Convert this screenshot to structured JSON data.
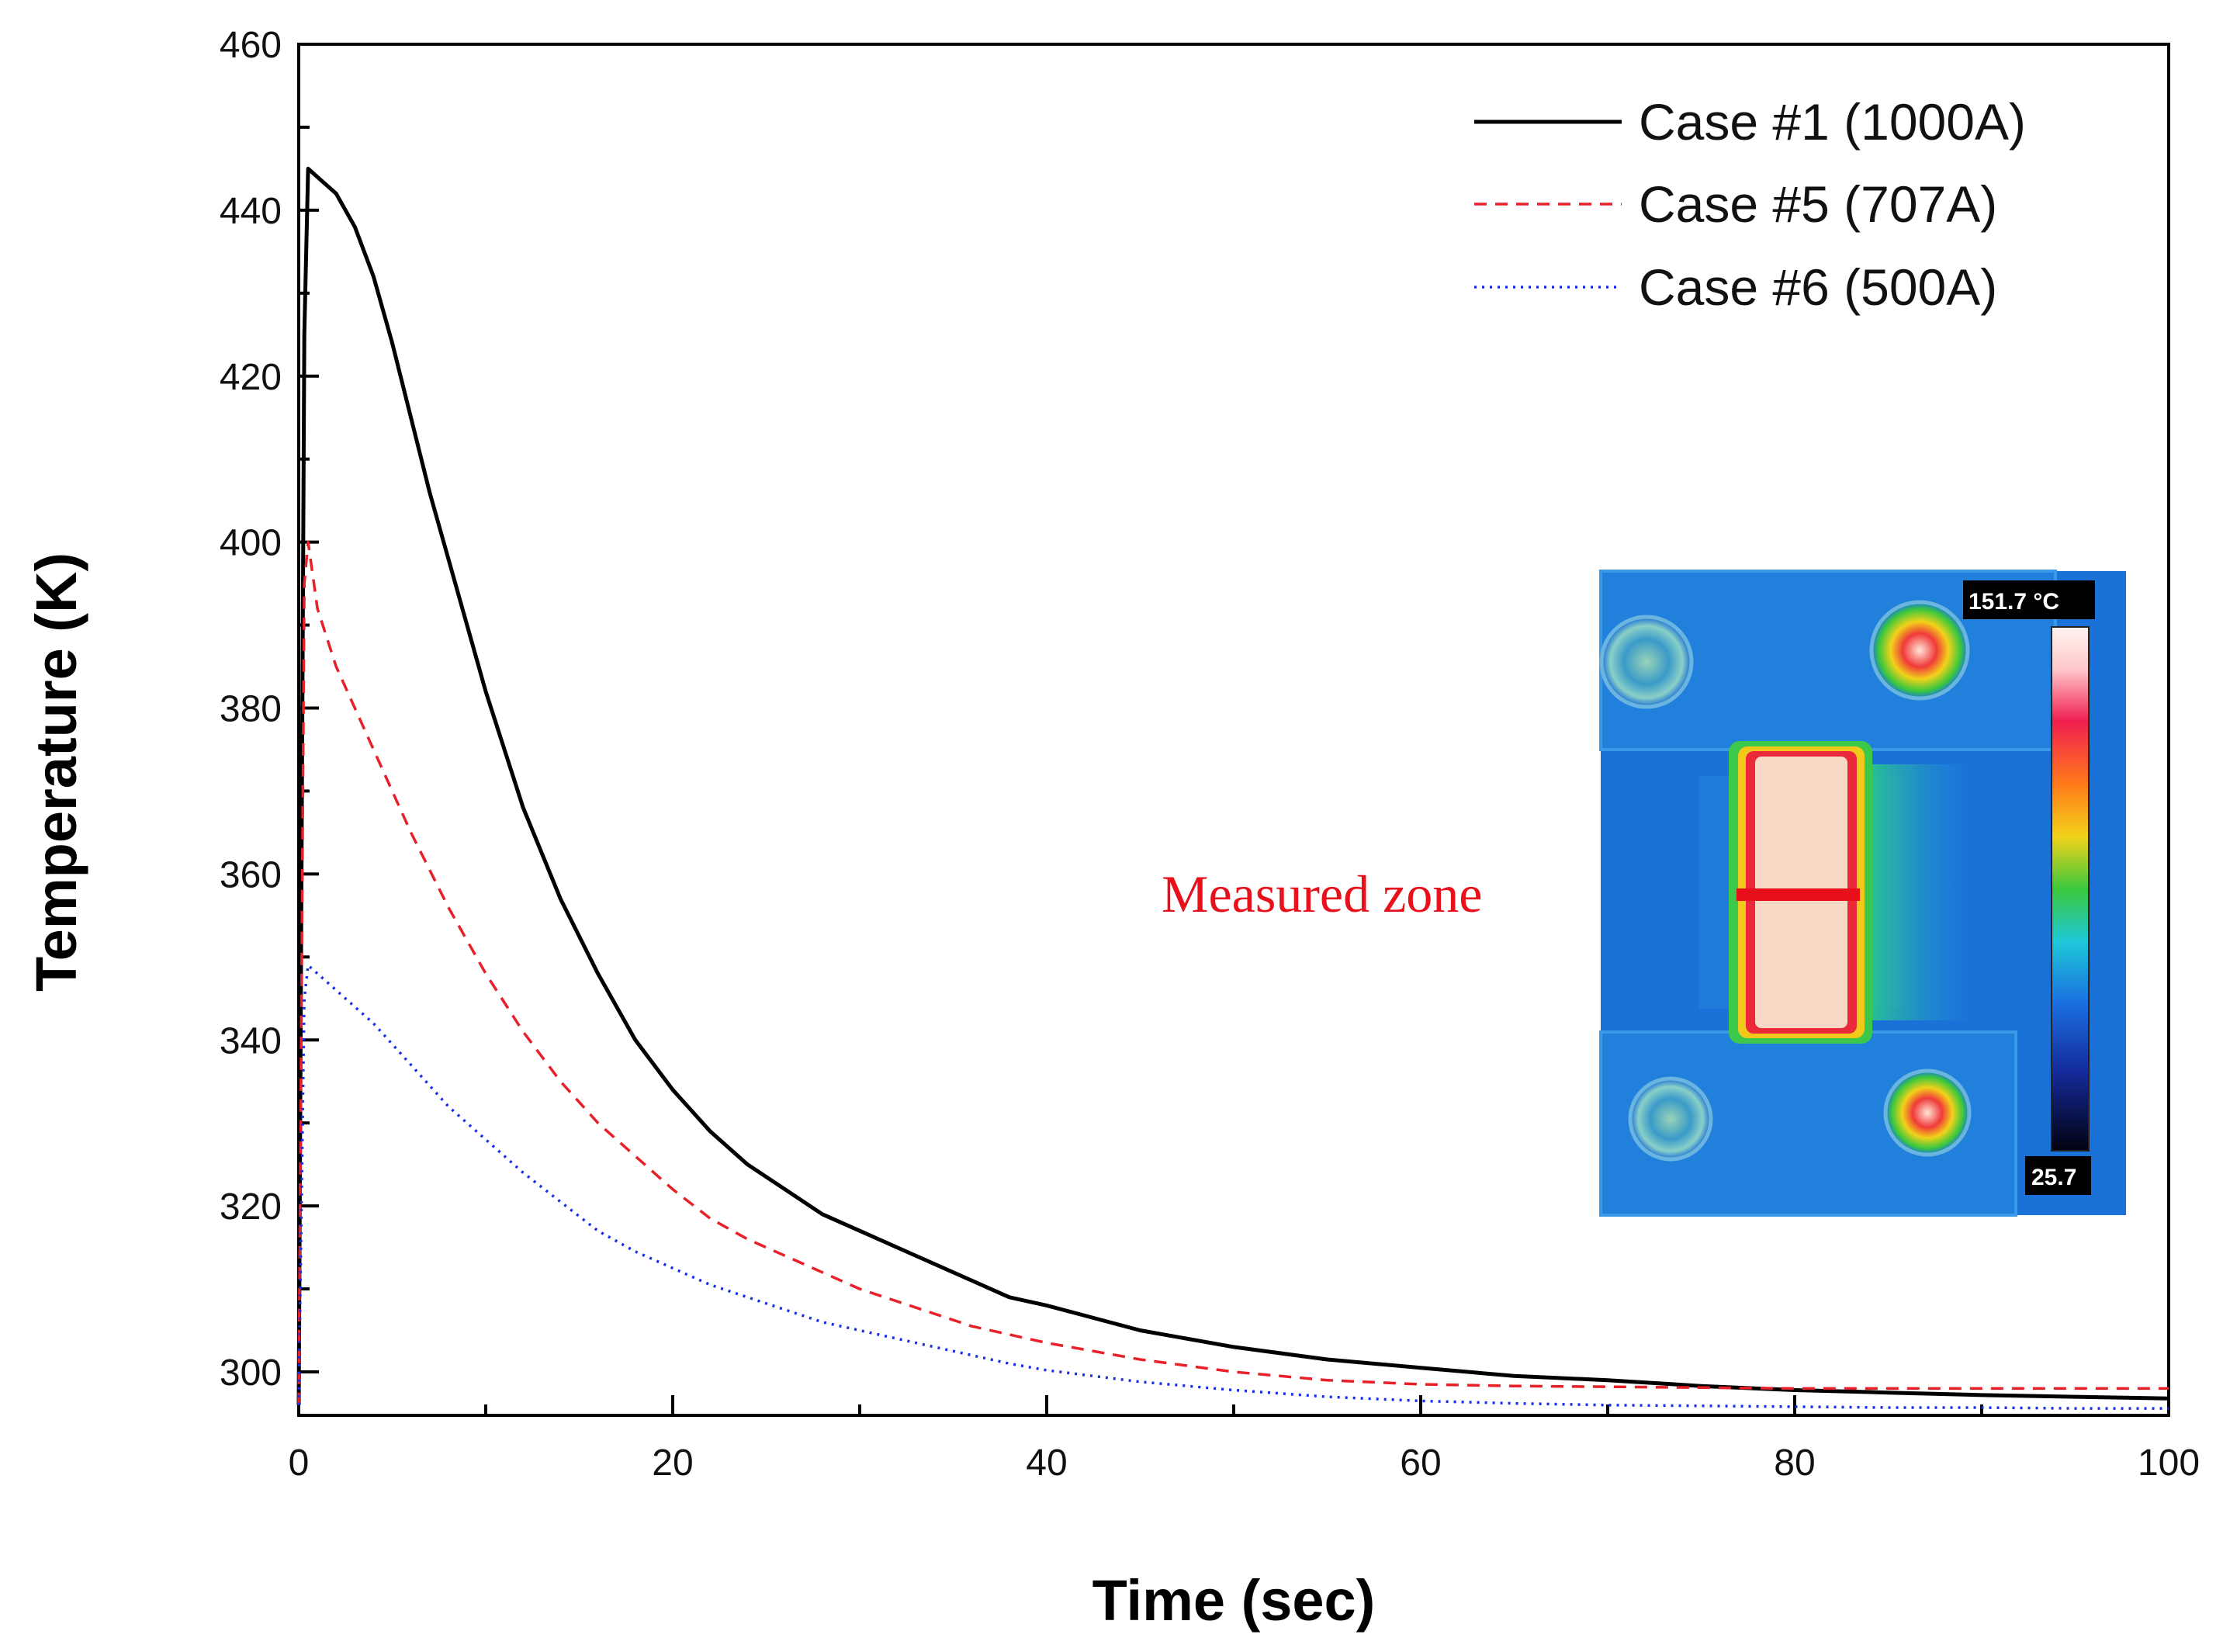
{
  "chart_data": {
    "type": "line",
    "title": "",
    "xlabel": "Time (sec)",
    "ylabel": "Temperature (K)",
    "xlim": [
      0,
      100
    ],
    "ylim": [
      295,
      460
    ],
    "x_ticks": [
      0,
      20,
      40,
      60,
      80,
      100
    ],
    "y_ticks": [
      300,
      320,
      340,
      360,
      380,
      400,
      420,
      440,
      460
    ],
    "grid": false,
    "legend_position": "top-right",
    "series": [
      {
        "name": "Case #1 (1000A)",
        "color": "#000000",
        "style": "solid",
        "x": [
          0,
          0.3,
          0.5,
          1,
          2,
          3,
          4,
          5,
          6,
          7,
          8,
          9,
          10,
          12,
          14,
          16,
          18,
          20,
          22,
          24,
          26,
          28,
          30,
          32,
          34,
          36,
          38,
          40,
          45,
          50,
          55,
          60,
          65,
          70,
          75,
          80,
          85,
          90,
          95,
          100
        ],
        "y": [
          296,
          425,
          445,
          444,
          442,
          438,
          432,
          424,
          415,
          406,
          398,
          390,
          382,
          368,
          357,
          348,
          340,
          334,
          329,
          325,
          322,
          319,
          317,
          315,
          313,
          311,
          309,
          308,
          305,
          303,
          301.5,
          300.5,
          299.5,
          299,
          298.3,
          297.8,
          297.5,
          297.2,
          297,
          296.8
        ]
      },
      {
        "name": "Case #5 (707A)",
        "color": "#e8202a",
        "style": "dashed",
        "x": [
          0,
          0.3,
          0.5,
          1,
          2,
          4,
          6,
          8,
          10,
          12,
          14,
          16,
          18,
          20,
          22,
          24,
          26,
          28,
          30,
          32,
          34,
          36,
          38,
          40,
          45,
          50,
          55,
          60,
          65,
          70,
          75,
          80,
          85,
          90,
          95,
          100
        ],
        "y": [
          296,
          395,
          400,
          392,
          385,
          375,
          365,
          356,
          348,
          341,
          335,
          330,
          326,
          322,
          318.5,
          316,
          314,
          312,
          310,
          308.5,
          307,
          305.5,
          304.5,
          303.5,
          301.5,
          300,
          299,
          298.5,
          298.3,
          298.2,
          298.1,
          298,
          298,
          298,
          298,
          298
        ]
      },
      {
        "name": "Case #6 (500A)",
        "color": "#1a2ee8",
        "style": "dotted",
        "x": [
          0,
          0.3,
          0.5,
          1,
          2,
          4,
          6,
          8,
          10,
          12,
          14,
          16,
          18,
          20,
          22,
          24,
          26,
          28,
          30,
          32,
          34,
          36,
          38,
          40,
          45,
          50,
          55,
          60,
          65,
          70,
          75,
          80,
          85,
          90,
          95,
          100
        ],
        "y": [
          296,
          345,
          349,
          348,
          346,
          342,
          337,
          332,
          328,
          324,
          320.5,
          317,
          314.5,
          312.5,
          310.5,
          309,
          307.5,
          306,
          305,
          304,
          303,
          302,
          301,
          300.2,
          298.8,
          297.8,
          297,
          296.5,
          296.2,
          296,
          295.9,
          295.8,
          295.7,
          295.7,
          295.6,
          295.6
        ]
      }
    ],
    "annotation": "Measured zone",
    "inset": {
      "max_label": "151.7 °C",
      "min_label": "25.7"
    }
  }
}
